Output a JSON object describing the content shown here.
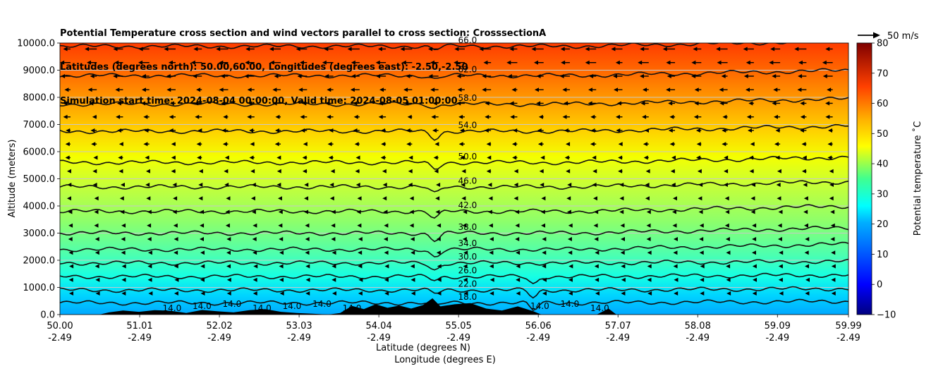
{
  "chart_data": {
    "type": "heatmap",
    "title_lines": [
      "Potential Temperature cross section and wind vectors parallel to cross section: CrosssectionA",
      "Latitudes (degrees north): 50.00,60.00, Longitudes (degrees east): -2.50,-2.50",
      "Simulation start time: 2024-08-04 00:00:00, Valid time: 2024-08-05 01:00:00"
    ],
    "xlabel_lat": "Latitude (degrees N)",
    "xlabel_lon": "Longitude (degrees E)",
    "ylabel": "Altitude (meters)",
    "x_ticks": [
      {
        "lat": "50.00",
        "lon": "-2.49",
        "value": 50.0
      },
      {
        "lat": "51.01",
        "lon": "-2.49",
        "value": 51.01
      },
      {
        "lat": "52.02",
        "lon": "-2.49",
        "value": 52.02
      },
      {
        "lat": "53.03",
        "lon": "-2.49",
        "value": 53.03
      },
      {
        "lat": "54.04",
        "lon": "-2.49",
        "value": 54.04
      },
      {
        "lat": "55.05",
        "lon": "-2.49",
        "value": 55.05
      },
      {
        "lat": "56.06",
        "lon": "-2.49",
        "value": 56.06
      },
      {
        "lat": "57.07",
        "lon": "-2.49",
        "value": 57.07
      },
      {
        "lat": "58.08",
        "lon": "-2.49",
        "value": 58.08
      },
      {
        "lat": "59.09",
        "lon": "-2.49",
        "value": 59.09
      },
      {
        "lat": "59.99",
        "lon": "-2.49",
        "value": 59.99
      }
    ],
    "xlim": [
      50.0,
      59.99
    ],
    "y_ticks": [
      "0.0",
      "1000.0",
      "2000.0",
      "3000.0",
      "4000.0",
      "5000.0",
      "6000.0",
      "7000.0",
      "8000.0",
      "9000.0",
      "10000.0"
    ],
    "ylim": [
      0,
      10000
    ],
    "grid": "horizontal",
    "colorbar": {
      "label": "Potential temperature ˚C",
      "ticks": [
        "−10",
        "0",
        "10",
        "20",
        "30",
        "40",
        "50",
        "60",
        "70",
        "80"
      ],
      "range": [
        -10,
        80
      ],
      "colormap": "jet"
    },
    "quiver_key": "50 m/s",
    "contours": [
      {
        "level": 18,
        "label": "18.0",
        "altitude": 430
      },
      {
        "level": 22,
        "label": "22.0",
        "altitude": 900
      },
      {
        "level": 26,
        "label": "26.0",
        "altitude": 1400
      },
      {
        "level": 30,
        "label": "30.0",
        "altitude": 1900
      },
      {
        "level": 34,
        "label": "34.0",
        "altitude": 2400
      },
      {
        "level": 38,
        "label": "38.0",
        "altitude": 3000
      },
      {
        "level": 42,
        "label": "42.0",
        "altitude": 3800
      },
      {
        "level": 46,
        "label": "46.0",
        "altitude": 4700
      },
      {
        "level": 50,
        "label": "50.0",
        "altitude": 5600
      },
      {
        "level": 54,
        "label": "54.0",
        "altitude": 6750
      },
      {
        "level": 58,
        "label": "58.0",
        "altitude": 7750
      },
      {
        "level": 62,
        "label": "62.0",
        "altitude": 8800
      },
      {
        "level": 66,
        "label": "66.0",
        "altitude": 9880
      }
    ],
    "surface_contour_labels": [
      "14.0",
      "14.0",
      "14.0",
      "14.0",
      "14.0",
      "14.0",
      "14.0",
      "14.0",
      "14.0",
      "14.0"
    ],
    "terrain": [
      {
        "lat": 50.0,
        "alt": 0
      },
      {
        "lat": 50.5,
        "alt": 0
      },
      {
        "lat": 50.62,
        "alt": 80
      },
      {
        "lat": 50.8,
        "alt": 150
      },
      {
        "lat": 51.0,
        "alt": 100
      },
      {
        "lat": 51.2,
        "alt": 160
      },
      {
        "lat": 51.4,
        "alt": 140
      },
      {
        "lat": 51.6,
        "alt": 60
      },
      {
        "lat": 51.8,
        "alt": 170
      },
      {
        "lat": 52.0,
        "alt": 120
      },
      {
        "lat": 52.2,
        "alt": 80
      },
      {
        "lat": 52.4,
        "alt": 160
      },
      {
        "lat": 52.6,
        "alt": 200
      },
      {
        "lat": 52.8,
        "alt": 100
      },
      {
        "lat": 53.0,
        "alt": 60
      },
      {
        "lat": 53.2,
        "alt": 30
      },
      {
        "lat": 53.4,
        "alt": 0
      },
      {
        "lat": 53.55,
        "alt": 60
      },
      {
        "lat": 53.7,
        "alt": 320
      },
      {
        "lat": 53.85,
        "alt": 200
      },
      {
        "lat": 54.0,
        "alt": 380
      },
      {
        "lat": 54.15,
        "alt": 250
      },
      {
        "lat": 54.3,
        "alt": 330
      },
      {
        "lat": 54.45,
        "alt": 220
      },
      {
        "lat": 54.6,
        "alt": 350
      },
      {
        "lat": 54.72,
        "alt": 600
      },
      {
        "lat": 54.82,
        "alt": 300
      },
      {
        "lat": 55.0,
        "alt": 380
      },
      {
        "lat": 55.2,
        "alt": 420
      },
      {
        "lat": 55.4,
        "alt": 220
      },
      {
        "lat": 55.6,
        "alt": 150
      },
      {
        "lat": 55.8,
        "alt": 300
      },
      {
        "lat": 56.0,
        "alt": 120
      },
      {
        "lat": 56.1,
        "alt": 0
      },
      {
        "lat": 56.8,
        "alt": 0
      },
      {
        "lat": 56.95,
        "alt": 220
      },
      {
        "lat": 57.05,
        "alt": 0
      },
      {
        "lat": 59.99,
        "alt": 0
      }
    ]
  }
}
